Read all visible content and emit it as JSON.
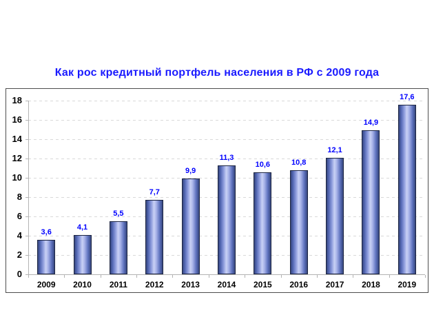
{
  "chart_data": {
    "type": "bar",
    "title": "Как рос кредитный портфель населения в РФ с 2009 года",
    "categories": [
      "2009",
      "2010",
      "2011",
      "2012",
      "2013",
      "2014",
      "2015",
      "2016",
      "2017",
      "2018",
      "2019"
    ],
    "values": [
      3.6,
      4.1,
      5.5,
      7.7,
      9.9,
      11.3,
      10.6,
      10.8,
      12.1,
      14.9,
      17.6
    ],
    "value_labels": [
      "3,6",
      "4,1",
      "5,5",
      "7,7",
      "9,9",
      "11,3",
      "10,6",
      "10,8",
      "12,1",
      "14,9",
      "17,6"
    ],
    "xlabel": "",
    "ylabel": "",
    "ylim": [
      0,
      18
    ],
    "y_ticks": [
      0,
      2,
      4,
      6,
      8,
      10,
      12,
      14,
      16,
      18
    ],
    "grid": "horizontal-dashed",
    "legend": "none",
    "colors": {
      "title_text": "#1a1aff",
      "value_label_text": "#0000ff",
      "axis_text": "#000000",
      "grid_line": "#d9d9d9",
      "axis_line": "#b3b3b3",
      "bar_edge": "#36467e",
      "bar_highlight": "#c9d1f5",
      "bar_border": "#1c2440",
      "chart_border": "#4c4c4c",
      "background": "#ffffff"
    }
  }
}
